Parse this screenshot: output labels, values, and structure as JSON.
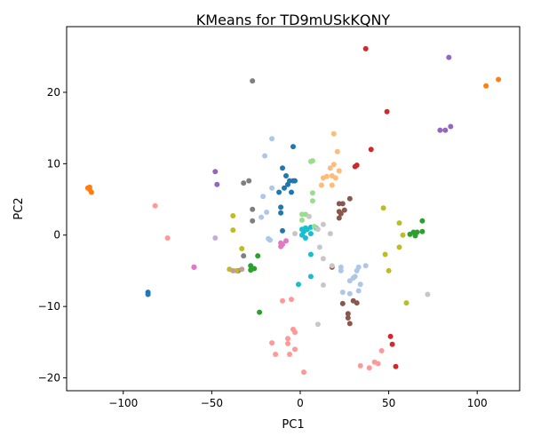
{
  "chart_data": {
    "type": "scatter",
    "title": "KMeans for TD9mUSkKQNY",
    "xlabel": "PC1",
    "ylabel": "PC2",
    "xlim": [
      -132,
      124
    ],
    "ylim": [
      -21.8,
      29.2
    ],
    "xticks": [
      -100,
      -50,
      0,
      50,
      100
    ],
    "yticks": [
      -20,
      -10,
      0,
      10,
      20
    ],
    "xtick_labels": [
      "−100",
      "−50",
      "0",
      "50",
      "100"
    ],
    "ytick_labels": [
      "−20",
      "−10",
      "0",
      "10",
      "20"
    ],
    "grid": false,
    "legend": "none",
    "series": [
      {
        "color": "#1f77b4",
        "points": [
          [
            -86,
            -8
          ],
          [
            -86,
            -8.3
          ],
          [
            -10,
            9.4
          ],
          [
            -8,
            8.3
          ],
          [
            -7,
            7.1
          ],
          [
            -6,
            7.6
          ],
          [
            -4,
            7.6
          ],
          [
            -3,
            7.6
          ],
          [
            -5,
            6
          ],
          [
            -9,
            6.6
          ],
          [
            -12,
            6
          ],
          [
            -11,
            3.9
          ],
          [
            -11,
            3.1
          ],
          [
            -10,
            0.6
          ],
          [
            -4,
            12.4
          ]
        ]
      },
      {
        "color": "#ff7f0e",
        "points": [
          [
            -120,
            6.6
          ],
          [
            -119,
            6.7
          ],
          [
            -118,
            6
          ],
          [
            -119,
            6.4
          ],
          [
            105,
            20.9
          ],
          [
            112,
            21.8
          ]
        ]
      },
      {
        "color": "#2ca02c",
        "points": [
          [
            -28,
            -4.3
          ],
          [
            -28,
            -4.9
          ],
          [
            -26,
            -4.7
          ],
          [
            -24,
            -2.9
          ],
          [
            -23,
            -10.8
          ],
          [
            62,
            0.1
          ],
          [
            64,
            0.4
          ],
          [
            66,
            0.4
          ],
          [
            65,
            -0.1
          ],
          [
            69,
            2
          ],
          [
            69,
            0.5
          ]
        ]
      },
      {
        "color": "#d62728",
        "points": [
          [
            37,
            26.1
          ],
          [
            49,
            17.3
          ],
          [
            40,
            12
          ],
          [
            31,
            9.6
          ],
          [
            32,
            9.8
          ],
          [
            51,
            -14.2
          ],
          [
            52,
            -15.3
          ],
          [
            54,
            -18.4
          ]
        ]
      },
      {
        "color": "#9467bd",
        "points": [
          [
            84,
            24.9
          ],
          [
            79,
            14.7
          ],
          [
            82,
            14.7
          ],
          [
            85,
            15.2
          ],
          [
            -60,
            -4.5
          ],
          [
            -48,
            8.9
          ],
          [
            -47,
            7.1
          ]
        ]
      },
      {
        "color": "#8c564b",
        "points": [
          [
            22,
            4.4
          ],
          [
            24,
            4.4
          ],
          [
            28,
            5.1
          ],
          [
            22,
            3.3
          ],
          [
            22,
            2.4
          ],
          [
            23,
            3
          ],
          [
            25,
            3.5
          ],
          [
            24,
            -9.6
          ],
          [
            27,
            -11
          ],
          [
            27,
            -11.6
          ],
          [
            28,
            -12.4
          ],
          [
            30,
            -9.2
          ],
          [
            32,
            -9.5
          ],
          [
            18,
            -4.5
          ]
        ]
      },
      {
        "color": "#e377c2",
        "points": [
          [
            -11,
            -1.1
          ],
          [
            -10,
            -1.3
          ],
          [
            -11,
            -1.6
          ],
          [
            -8,
            -0.8
          ],
          [
            -60,
            -4.5
          ]
        ]
      },
      {
        "color": "#7f7f7f",
        "points": [
          [
            -27,
            21.6
          ],
          [
            -32,
            7.3
          ],
          [
            -29,
            7.6
          ],
          [
            -27,
            3.6
          ],
          [
            -27,
            2
          ],
          [
            -32,
            -2.9
          ],
          [
            -35,
            -5
          ]
        ]
      },
      {
        "color": "#bcbd22",
        "points": [
          [
            -38,
            2.7
          ],
          [
            -38,
            0.7
          ],
          [
            -33,
            -1.9
          ],
          [
            -40,
            -4.8
          ],
          [
            -36,
            -5
          ],
          [
            47,
            3.8
          ],
          [
            56,
            1.7
          ],
          [
            56,
            -1.7
          ],
          [
            58,
            0
          ],
          [
            48,
            -2.7
          ],
          [
            50,
            -5
          ],
          [
            60,
            -9.5
          ]
        ]
      },
      {
        "color": "#17becf",
        "points": [
          [
            1,
            0.8
          ],
          [
            2,
            0.5
          ],
          [
            3,
            1
          ],
          [
            4,
            0.8
          ],
          [
            6,
            1.1
          ],
          [
            6,
            0.2
          ],
          [
            9,
            1
          ],
          [
            1,
            0
          ],
          [
            3,
            -0.4
          ],
          [
            6,
            -2.7
          ],
          [
            6,
            -5.8
          ],
          [
            -1,
            -6.9
          ]
        ]
      },
      {
        "color": "#aec7e8",
        "points": [
          [
            -16,
            13.5
          ],
          [
            -20,
            11.1
          ],
          [
            -16,
            6.6
          ],
          [
            -21,
            5.4
          ],
          [
            -19,
            3.2
          ],
          [
            -22,
            2.5
          ],
          [
            -18,
            -0.5
          ],
          [
            -17,
            -0.7
          ],
          [
            23,
            -4.5
          ],
          [
            23,
            -5
          ],
          [
            28,
            -6.4
          ],
          [
            30,
            -6
          ],
          [
            31,
            -5.8
          ],
          [
            33,
            -4.5
          ],
          [
            32,
            -5
          ],
          [
            37,
            -4.3
          ],
          [
            34,
            -6.9
          ],
          [
            28,
            -8.2
          ],
          [
            33,
            -7.8
          ],
          [
            24,
            -8
          ]
        ]
      },
      {
        "color": "#ffbb78",
        "points": [
          [
            19,
            14.2
          ],
          [
            21,
            11.7
          ],
          [
            17,
            9.4
          ],
          [
            19,
            9.9
          ],
          [
            22,
            9
          ],
          [
            13,
            8
          ],
          [
            15,
            8.2
          ],
          [
            18,
            8.3
          ],
          [
            20,
            8
          ],
          [
            12,
            7
          ],
          [
            18,
            7
          ]
        ]
      },
      {
        "color": "#98df8a",
        "points": [
          [
            6,
            10.3
          ],
          [
            7,
            10.4
          ],
          [
            7,
            5.9
          ],
          [
            7,
            4.8
          ],
          [
            1,
            2.9
          ],
          [
            3,
            2.9
          ],
          [
            1,
            2.1
          ],
          [
            8,
            1.2
          ]
        ]
      },
      {
        "color": "#ff9896",
        "points": [
          [
            -82,
            4.1
          ],
          [
            -75,
            -0.4
          ],
          [
            -10,
            -9.2
          ],
          [
            -5,
            -9
          ],
          [
            -16,
            -15.1
          ],
          [
            -14,
            -16.7
          ],
          [
            -7,
            -14.5
          ],
          [
            -7,
            -15.2
          ],
          [
            -4,
            -13.2
          ],
          [
            -3,
            -13.6
          ],
          [
            -3,
            -16
          ],
          [
            -6,
            -16.7
          ],
          [
            2,
            -19.2
          ],
          [
            34,
            -18.3
          ],
          [
            39,
            -18.6
          ],
          [
            42,
            -17.8
          ],
          [
            44,
            -18
          ],
          [
            46,
            -16.2
          ]
        ]
      },
      {
        "color": "#c49c94",
        "points": [
          [
            -38,
            -5
          ],
          [
            -33,
            -4.8
          ]
        ]
      },
      {
        "color": "#c5b0d5",
        "points": [
          [
            -48,
            -0.4
          ]
        ]
      },
      {
        "color": "#c7c7c7",
        "points": [
          [
            -3,
            0.2
          ],
          [
            5,
            2.6
          ],
          [
            10,
            0.8
          ],
          [
            13,
            1.5
          ],
          [
            17,
            0.2
          ],
          [
            11,
            -1.7
          ],
          [
            13,
            -3.3
          ],
          [
            18,
            -4.3
          ],
          [
            13,
            -7
          ],
          [
            10,
            -12.5
          ],
          [
            72,
            -8.3
          ]
        ]
      }
    ]
  }
}
